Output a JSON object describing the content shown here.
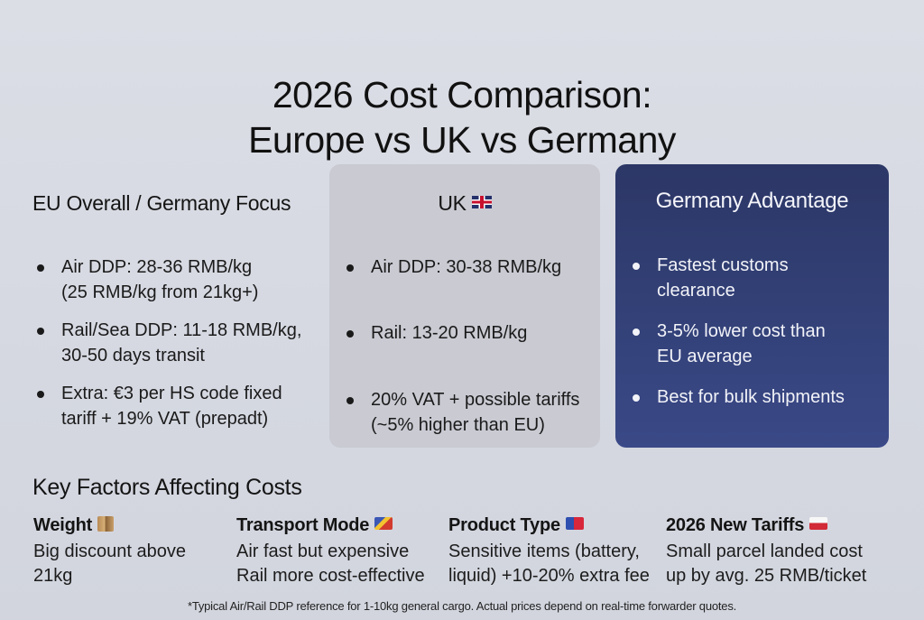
{
  "title": {
    "line1": "2026 Cost Comparison:",
    "line2": "Europe vs UK vs Germany"
  },
  "panels": {
    "eu": {
      "heading": "EU Overall / Germany Focus",
      "bullets": [
        {
          "line1": "Air DDP: 28-36 RMB/kg",
          "line2": "(25 RMB/kg from 21kg+)"
        },
        {
          "line1": "Rail/Sea DDP: 11-18 RMB/kg,",
          "line2": "30-50 days transit"
        },
        {
          "line1": "Extra: €3 per HS code fixed",
          "line2": "tariff + 19% VAT (prepadt)"
        }
      ]
    },
    "uk": {
      "heading": "UK",
      "flag_icon": "uk-flag-icon",
      "background": "#c9cad2",
      "bullets": [
        {
          "line1": "Air DDP: 30-38 RMB/kg"
        },
        {
          "line1": "Rail: 13-20 RMB/kg"
        },
        {
          "line1": "20% VAT + possible tariffs",
          "line2": "(~5% higher than EU)"
        }
      ]
    },
    "germany": {
      "heading": "Germany Advantage",
      "background": "#34427a",
      "bullets": [
        {
          "line1": "Fastest customs",
          "line2": "clearance"
        },
        {
          "line1": "3-5% lower cost than",
          "line2": "EU average"
        },
        {
          "line1": "Best for bulk shipments"
        }
      ]
    }
  },
  "key_factors": {
    "title": "Key Factors Affecting Costs",
    "items": [
      {
        "heading": "Weight",
        "icon": "package-icon",
        "line1": "Big discount above",
        "line2": "21kg"
      },
      {
        "heading": "Transport Mode",
        "icon": "flag-emoji-icon",
        "line1": "Air fast but expensive",
        "line2": "Rail more cost-effective"
      },
      {
        "heading": "Product Type",
        "icon": "flag-emoji-icon",
        "line1": "Sensitive items (battery,",
        "line2": "liquid) +10-20% extra fee"
      },
      {
        "heading": "2026 New Tariffs",
        "icon": "flag-emoji-icon",
        "line1": "Small parcel landed cost",
        "line2": "up by avg. 25 RMB/ticket"
      }
    ]
  },
  "footnote": "*Typical Air/Rail DDP reference for 1-10kg general cargo. Actual prices depend on real-time forwarder quotes."
}
